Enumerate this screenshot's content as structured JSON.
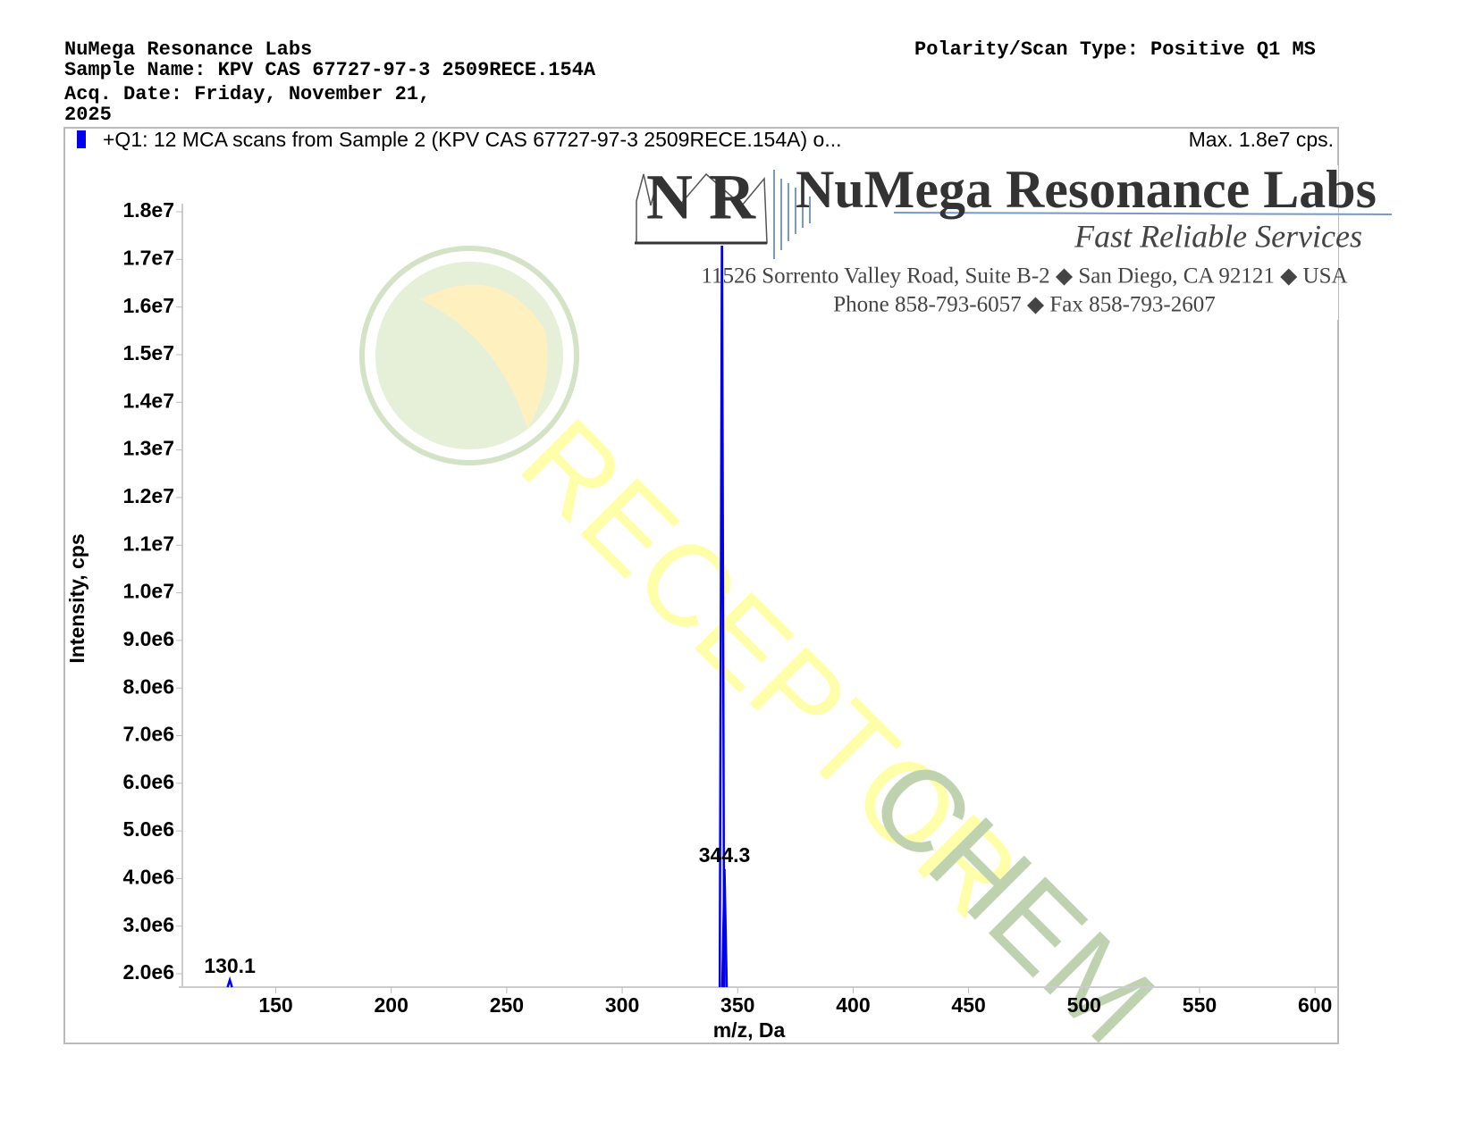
{
  "header": {
    "lab": "NuMega Resonance Labs",
    "sample": "Sample Name: KPV CAS 67727-97-3 2509RECE.154A",
    "date": "Acq. Date: Friday, November 21, 2025",
    "scan": "Polarity/Scan Type: Positive Q1 MS"
  },
  "logo": {
    "name": "NuMega Resonance Labs",
    "slogan": "Fast Reliable Services",
    "address": "11526 Sorrento Valley Road, Suite B-2 ◆ San Diego, CA 92121 ◆ USA",
    "phone": "Phone 858-793-6057 ◆ Fax 858-793-2607",
    "mark": "N R"
  },
  "watermark": {
    "word1": "RECEPTOR",
    "word2": "CHEM"
  },
  "chart_data": {
    "type": "spectrum",
    "legend": "+Q1: 12 MCA scans from Sample 2 (KPV CAS 67727-97-3 2509RECE.154A) o...",
    "max_label": "Max. 1.8e7 cps.",
    "x_label": "m/z, Da",
    "y_label": "Intensity, cps",
    "color": "#0000ee",
    "x": [
      130.1,
      343.2,
      344.3
    ],
    "values": [
      1870000,
      18000000,
      4200000
    ],
    "xlim": [
      108,
      610
    ],
    "xticks": [
      150,
      200,
      250,
      300,
      350,
      400,
      450,
      500,
      550,
      600
    ],
    "ylim": [
      1720000,
      18170000
    ],
    "yticks": [
      {
        "value": 2000000,
        "label": "2.0e6"
      },
      {
        "value": 3000000,
        "label": "3.0e6"
      },
      {
        "value": 4000000,
        "label": "4.0e6"
      },
      {
        "value": 5000000,
        "label": "5.0e6"
      },
      {
        "value": 6000000,
        "label": "6.0e6"
      },
      {
        "value": 7000000,
        "label": "7.0e6"
      },
      {
        "value": 8000000,
        "label": "8.0e6"
      },
      {
        "value": 9000000,
        "label": "9.0e6"
      },
      {
        "value": 10000000,
        "label": "1.0e7"
      },
      {
        "value": 11000000,
        "label": "1.1e7"
      },
      {
        "value": 12000000,
        "label": "1.2e7"
      },
      {
        "value": 13000000,
        "label": "1.3e7"
      },
      {
        "value": 14000000,
        "label": "1.4e7"
      },
      {
        "value": 15000000,
        "label": "1.5e7"
      },
      {
        "value": 16000000,
        "label": "1.6e7"
      },
      {
        "value": 17000000,
        "label": "1.7e7"
      },
      {
        "value": 18000000,
        "label": "1.8e7"
      }
    ]
  }
}
